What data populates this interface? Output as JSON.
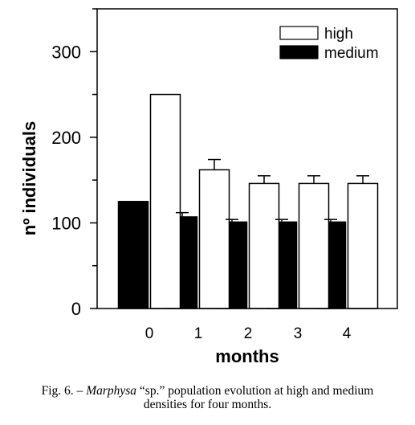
{
  "chart_data": {
    "type": "bar",
    "title": "",
    "xlabel": "months",
    "ylabel": "nº individuals",
    "categories": [
      "0",
      "1",
      "2",
      "3",
      "4"
    ],
    "series": [
      {
        "name": "medium",
        "color": "#000000",
        "values": [
          125,
          107,
          101,
          101,
          101
        ],
        "errors": [
          0,
          5,
          3,
          3,
          3
        ]
      },
      {
        "name": "high",
        "color": "#ffffff",
        "values": [
          250,
          162,
          146,
          146,
          146
        ],
        "errors": [
          0,
          12,
          9,
          9,
          9
        ]
      }
    ],
    "ylim": [
      0,
      350
    ],
    "yticks": [
      0,
      100,
      200,
      300
    ],
    "grid": false,
    "legend_position": "top-right"
  },
  "caption": {
    "prefix": "Fig. 6. – ",
    "species": "Marphysa",
    "suffix_line1": " “sp.” population evolution at high and medium",
    "line2": "densities for four months."
  }
}
